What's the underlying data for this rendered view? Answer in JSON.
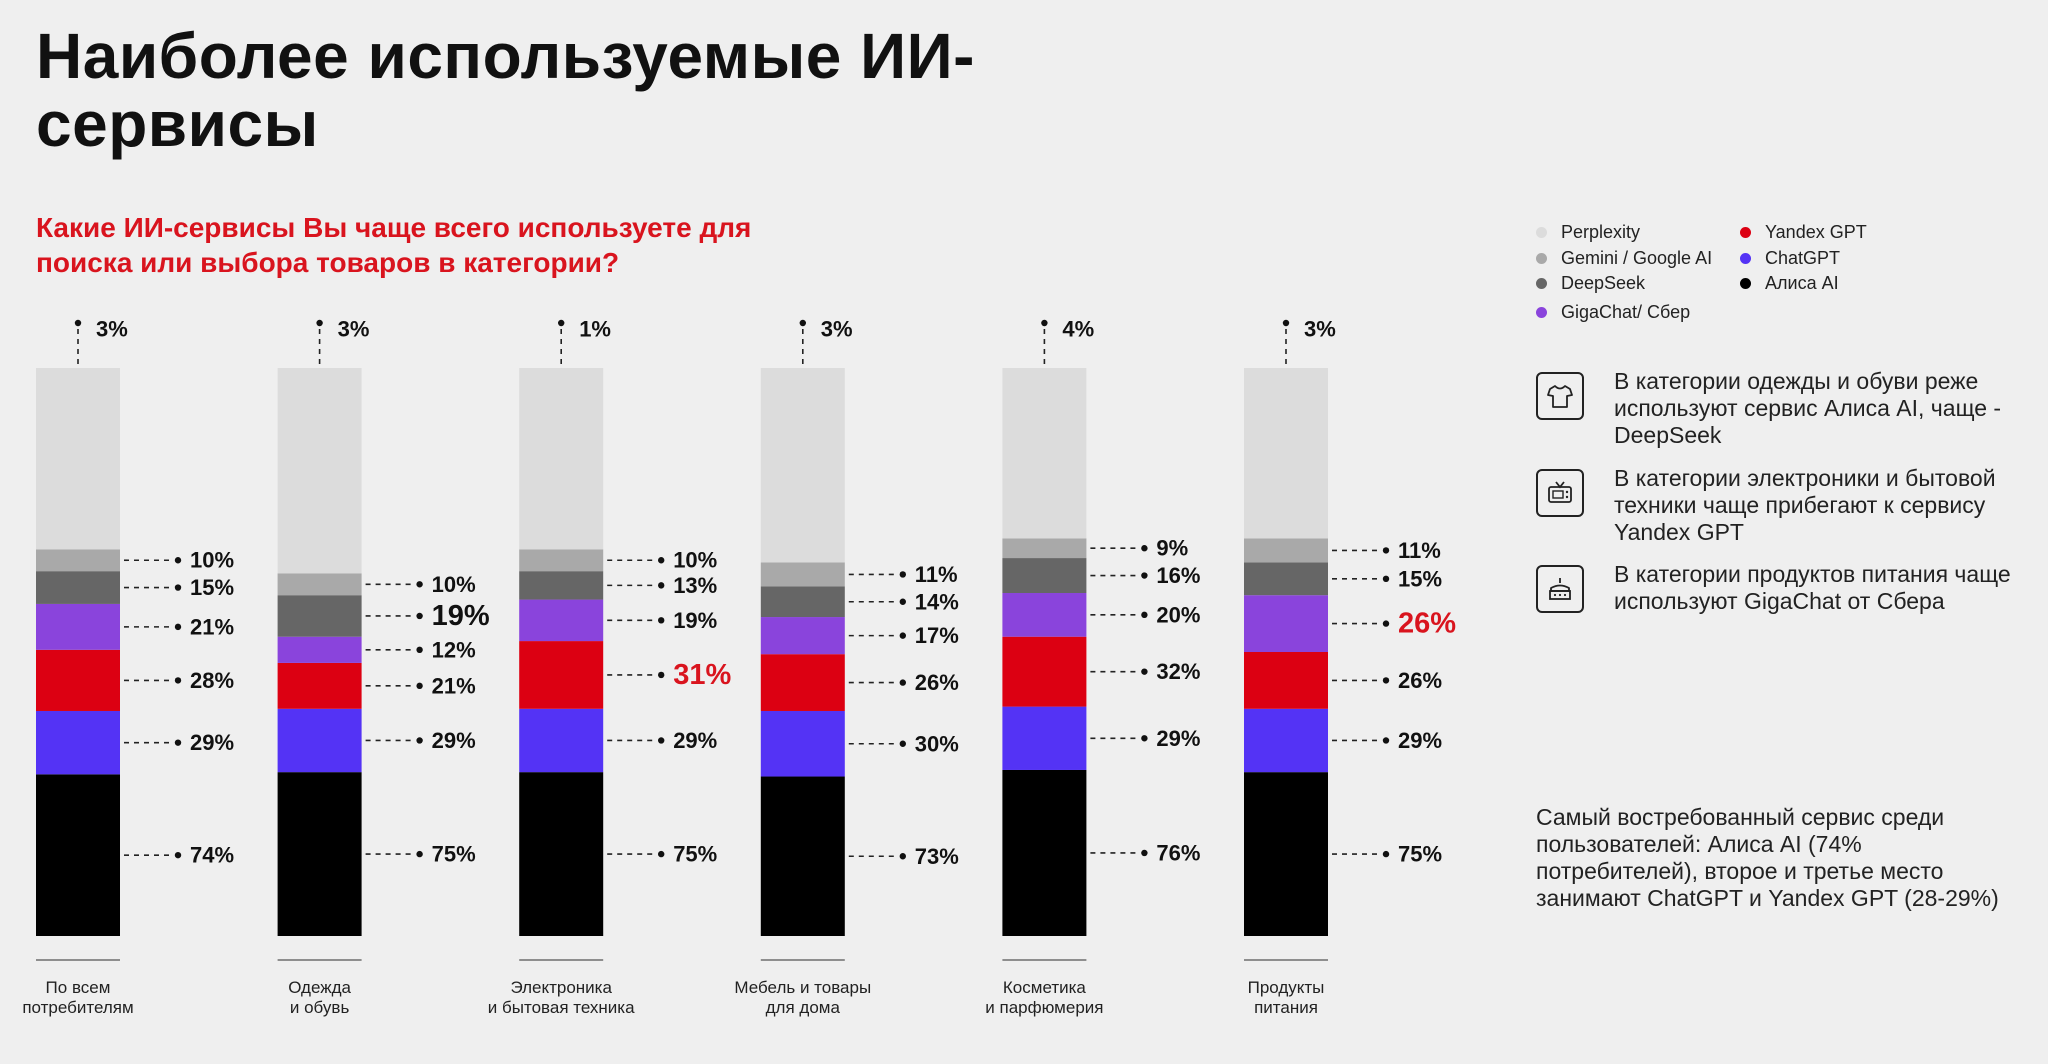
{
  "title": "Наиболее используемые ИИ-\nсервисы",
  "subtitle": "Какие ИИ-сервисы Вы чаще всего используете для\nпоиска или выбора товаров в категории?",
  "colors": {
    "perplexity": "#dcdcdc",
    "gemini": "#a9a9a9",
    "deepseek": "#666666",
    "gigachat": "#8a44dc",
    "yandex": "#dc0012",
    "chatgpt": "#5433f5",
    "alisa": "#000000",
    "highlight": "#d9141e"
  },
  "legend": [
    {
      "label": "Perplexity",
      "color": "#dcdcdc"
    },
    {
      "label": "Yandex GPT",
      "color": "#dc0012"
    },
    {
      "label": "Gemini / Google AI",
      "color": "#a9a9a9"
    },
    {
      "label": "ChatGPT",
      "color": "#5433f5"
    },
    {
      "label": "DeepSeek",
      "color": "#666666"
    },
    {
      "label": "Алиса AI",
      "color": "#000000"
    },
    {
      "label": "GigaChat/ Сбер",
      "color": "#8a44dc"
    }
  ],
  "insights": [
    {
      "icon": "tshirt-icon",
      "text": "В категории одежды и обуви реже используют сервис Алиса AI, чаще - DeepSeek"
    },
    {
      "icon": "tv-icon",
      "text": "В категории электроники и бытовой техники чаще прибегают к сервису Yandex GPT"
    },
    {
      "icon": "cake-icon",
      "text": "В категории продуктов питания чаще используют GigaChat от Сбера"
    }
  ],
  "summary": "Самый востребованный сервис среди пользователей: Алиса AI (74% потребителей), второе и третье место занимают ChatGPT и Yandex GPT (28-29%)",
  "chart_data": {
    "type": "bar",
    "stacked": true,
    "categories": [
      "По всем\nпотребителям",
      "Одежда\nи обувь",
      "Электроника\nи бытовая техника",
      "Мебель и товары\nдля дома",
      "Косметика\nи парфюмерия",
      "Продукты\nпитания"
    ],
    "series": [
      {
        "name": "Алиса AI",
        "key": "alisa",
        "values": [
          74,
          75,
          75,
          73,
          76,
          75
        ]
      },
      {
        "name": "ChatGPT",
        "key": "chatgpt",
        "values": [
          29,
          29,
          29,
          30,
          29,
          29
        ]
      },
      {
        "name": "Yandex GPT",
        "key": "yandex",
        "values": [
          28,
          21,
          31,
          26,
          32,
          26
        ]
      },
      {
        "name": "GigaChat/ Сбер",
        "key": "gigachat",
        "values": [
          21,
          12,
          19,
          17,
          20,
          26
        ]
      },
      {
        "name": "DeepSeek",
        "key": "deepseek",
        "values": [
          15,
          19,
          13,
          14,
          16,
          15
        ]
      },
      {
        "name": "Gemini / Google AI",
        "key": "gemini",
        "values": [
          10,
          10,
          10,
          11,
          9,
          11
        ]
      },
      {
        "name": "Perplexity",
        "key": "perplexity",
        "values": [
          3,
          3,
          1,
          3,
          4,
          3
        ]
      }
    ],
    "value_suffix": "%",
    "highlights": [
      {
        "category_index": 1,
        "series": "DeepSeek",
        "style": "large"
      },
      {
        "category_index": 2,
        "series": "Yandex GPT",
        "style": "red"
      },
      {
        "category_index": 5,
        "series": "GigaChat/ Сбер",
        "style": "red"
      }
    ]
  }
}
